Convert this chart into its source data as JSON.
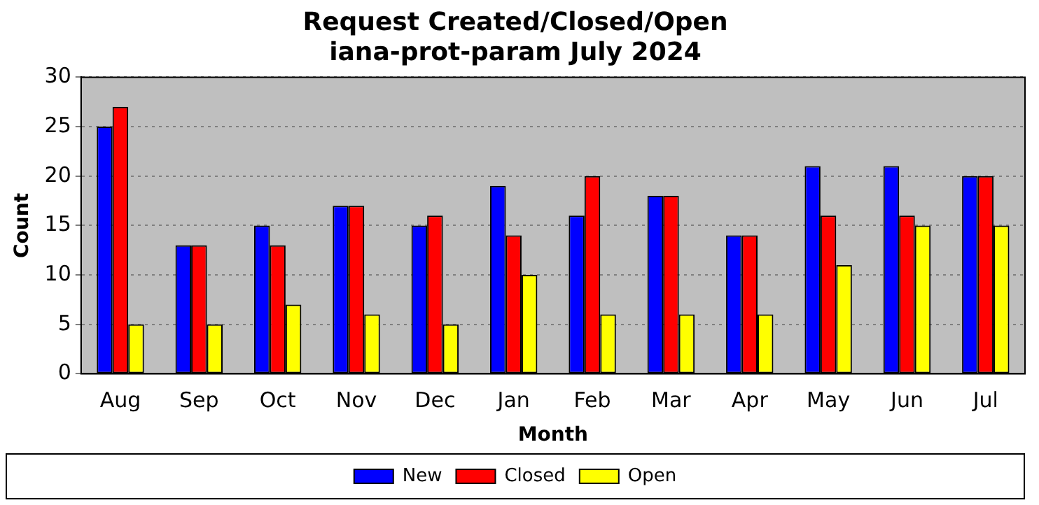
{
  "chart_data": {
    "type": "bar",
    "title": "Request Created/Closed/Open",
    "subtitle": "iana-prot-param July 2024",
    "xlabel": "Month",
    "ylabel": "Count",
    "categories": [
      "Aug",
      "Sep",
      "Oct",
      "Nov",
      "Dec",
      "Jan",
      "Feb",
      "Mar",
      "Apr",
      "May",
      "Jun",
      "Jul"
    ],
    "series": [
      {
        "name": "New",
        "color": "#0000ff",
        "values": [
          25,
          13,
          15,
          17,
          15,
          19,
          16,
          18,
          14,
          21,
          21,
          20
        ]
      },
      {
        "name": "Closed",
        "color": "#ff0000",
        "values": [
          27,
          13,
          13,
          17,
          16,
          14,
          20,
          18,
          14,
          16,
          16,
          20
        ]
      },
      {
        "name": "Open",
        "color": "#ffff00",
        "values": [
          5,
          5,
          7,
          6,
          5,
          10,
          6,
          6,
          6,
          11,
          15,
          15
        ]
      }
    ],
    "ylim": [
      0,
      30
    ],
    "yticks": [
      0,
      5,
      10,
      15,
      20,
      25,
      30
    ],
    "grid": "y",
    "legend": "bottom"
  }
}
